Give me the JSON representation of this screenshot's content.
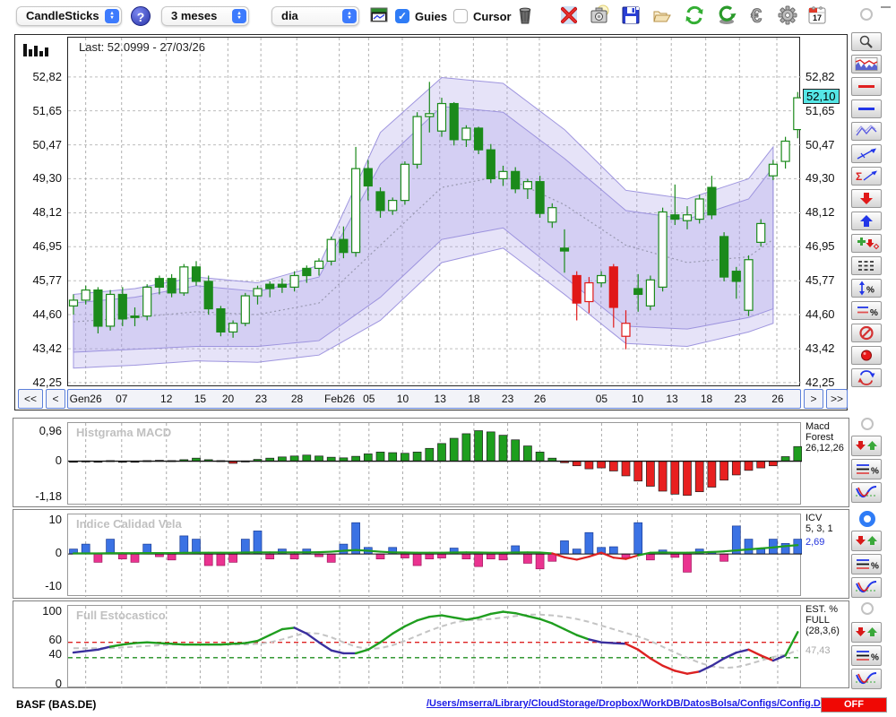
{
  "toolbar": {
    "chart_type": "CandleSticks",
    "period": "3 meses",
    "interval": "dia",
    "guies_label": "Guies",
    "cursor_label": "Cursor",
    "calendar_day": "17"
  },
  "icons": {
    "help": "?",
    "delete": "✗",
    "euro": "€"
  },
  "date_bar": {
    "first": "<<",
    "prev": "<",
    "next": ">",
    "last": ">>",
    "ticks": [
      {
        "l": "Gen26",
        "f": 0.024
      },
      {
        "l": "07",
        "f": 0.073
      },
      {
        "l": "12",
        "f": 0.134
      },
      {
        "l": "15",
        "f": 0.18
      },
      {
        "l": "20",
        "f": 0.218
      },
      {
        "l": "23",
        "f": 0.263
      },
      {
        "l": "28",
        "f": 0.312
      },
      {
        "l": "Feb26",
        "f": 0.37
      },
      {
        "l": "05",
        "f": 0.41
      },
      {
        "l": "10",
        "f": 0.456
      },
      {
        "l": "13",
        "f": 0.507
      },
      {
        "l": "18",
        "f": 0.553
      },
      {
        "l": "23",
        "f": 0.599
      },
      {
        "l": "26",
        "f": 0.643
      },
      {
        "l": "05",
        "f": 0.727
      },
      {
        "l": "10",
        "f": 0.776
      },
      {
        "l": "13",
        "f": 0.823
      },
      {
        "l": "18",
        "f": 0.87
      },
      {
        "l": "23",
        "f": 0.916
      },
      {
        "l": "26",
        "f": 0.967
      }
    ]
  },
  "colors": {
    "candle_up": "#1b8a1b",
    "candle_down": "#e01818",
    "band_fill": "rgba(165,155,230,0.28)",
    "band_edge": "rgba(150,140,220,0.9)",
    "mid_line": "#9898b0",
    "grid": "#bdbdbd",
    "macd_pos": "#1e9e1e",
    "macd_neg": "#e82020",
    "macd_small": "#111111",
    "icv_pos": "#3b72e4",
    "icv_neg": "#ea3390",
    "line_green": "#1f9e1f",
    "line_red": "#dd2222",
    "line_navy": "#3a2f9e",
    "stoch_d_gray": "#c4c4c4",
    "accent_blue": "#2f7cf6",
    "off_red": "#f00804",
    "price_tag_cyan": "#55e6e6"
  },
  "chart_data": [
    {
      "type": "candlestick",
      "name": "price",
      "last_label": "Last: 52.0999 - 27/03/26",
      "current_price": 52.1,
      "current_price_label": "52,10",
      "y_ticks": [
        52.82,
        51.65,
        50.47,
        49.3,
        48.12,
        46.95,
        45.77,
        44.6,
        43.42,
        42.25
      ],
      "y_tick_labels": [
        "52,82",
        "51,65",
        "50,47",
        "49,30",
        "48,12",
        "46,95",
        "45,77",
        "44,60",
        "43,42",
        "42,25"
      ],
      "price_domain": [
        54.18,
        42.09
      ],
      "candles": [
        [
          44.9,
          45.3,
          44.6,
          45.1,
          "h",
          "g"
        ],
        [
          45.1,
          45.6,
          44.95,
          45.45,
          "h",
          "g"
        ],
        [
          45.45,
          45.55,
          43.95,
          44.2,
          "s",
          "g"
        ],
        [
          44.2,
          45.45,
          44.05,
          45.3,
          "h",
          "g"
        ],
        [
          45.3,
          45.55,
          44.2,
          44.45,
          "s",
          "g"
        ],
        [
          44.5,
          44.85,
          44.2,
          44.55,
          "s",
          "g"
        ],
        [
          44.55,
          45.65,
          44.4,
          45.55,
          "h",
          "g"
        ],
        [
          45.55,
          45.95,
          45.3,
          45.85,
          "s",
          "g"
        ],
        [
          45.85,
          46.0,
          45.2,
          45.35,
          "s",
          "g"
        ],
        [
          45.35,
          46.35,
          45.25,
          46.25,
          "h",
          "g"
        ],
        [
          46.25,
          46.45,
          45.6,
          45.75,
          "s",
          "g"
        ],
        [
          45.75,
          45.95,
          44.6,
          44.8,
          "s",
          "g"
        ],
        [
          44.8,
          44.9,
          43.85,
          44.0,
          "s",
          "g"
        ],
        [
          44.0,
          44.4,
          43.8,
          44.3,
          "h",
          "g"
        ],
        [
          44.3,
          45.35,
          44.2,
          45.25,
          "h",
          "g"
        ],
        [
          45.25,
          45.6,
          44.95,
          45.5,
          "h",
          "g"
        ],
        [
          45.5,
          45.75,
          45.2,
          45.65,
          "s",
          "g"
        ],
        [
          45.65,
          45.85,
          45.35,
          45.55,
          "s",
          "g"
        ],
        [
          45.55,
          46.1,
          45.4,
          45.95,
          "h",
          "g"
        ],
        [
          45.95,
          46.3,
          45.7,
          46.2,
          "s",
          "g"
        ],
        [
          46.2,
          46.55,
          45.95,
          46.45,
          "h",
          "g"
        ],
        [
          46.45,
          47.3,
          46.3,
          47.2,
          "h",
          "g"
        ],
        [
          47.2,
          47.65,
          46.55,
          46.75,
          "s",
          "g"
        ],
        [
          46.75,
          50.4,
          46.6,
          49.65,
          "h",
          "g"
        ],
        [
          49.65,
          49.95,
          48.55,
          49.05,
          "s",
          "g"
        ],
        [
          48.85,
          49.0,
          47.95,
          48.2,
          "s",
          "g"
        ],
        [
          48.2,
          48.65,
          48.05,
          48.55,
          "h",
          "g"
        ],
        [
          48.55,
          49.9,
          48.4,
          49.8,
          "h",
          "g"
        ],
        [
          49.8,
          51.6,
          49.65,
          51.45,
          "h",
          "g"
        ],
        [
          51.45,
          52.65,
          50.9,
          51.55,
          "h",
          "g"
        ],
        [
          50.95,
          52.1,
          50.75,
          51.9,
          "h",
          "g"
        ],
        [
          51.9,
          51.95,
          50.45,
          50.65,
          "s",
          "g"
        ],
        [
          50.65,
          51.15,
          50.4,
          51.05,
          "h",
          "g"
        ],
        [
          51.05,
          51.1,
          50.15,
          50.3,
          "s",
          "g"
        ],
        [
          50.3,
          50.5,
          49.15,
          49.3,
          "s",
          "g"
        ],
        [
          49.3,
          49.75,
          49.05,
          49.55,
          "h",
          "g"
        ],
        [
          49.55,
          49.7,
          48.8,
          48.95,
          "s",
          "g"
        ],
        [
          48.95,
          49.3,
          48.6,
          49.2,
          "h",
          "g"
        ],
        [
          49.2,
          49.4,
          47.95,
          48.1,
          "s",
          "g"
        ],
        [
          47.8,
          48.45,
          47.6,
          48.3,
          "h",
          "g"
        ],
        [
          46.9,
          47.55,
          46.05,
          46.8,
          "s",
          "g"
        ],
        [
          45.95,
          46.1,
          44.4,
          45.0,
          "s",
          "r"
        ],
        [
          45.05,
          45.9,
          44.65,
          45.7,
          "h",
          "r"
        ],
        [
          45.7,
          46.1,
          45.55,
          45.95,
          "h",
          "g"
        ],
        [
          46.25,
          46.35,
          44.15,
          44.85,
          "s",
          "r"
        ],
        [
          43.85,
          44.75,
          43.4,
          44.3,
          "h",
          "r"
        ],
        [
          45.3,
          46.0,
          44.7,
          45.5,
          "s",
          "g"
        ],
        [
          44.9,
          45.95,
          44.75,
          45.8,
          "h",
          "g"
        ],
        [
          45.55,
          48.3,
          45.4,
          48.15,
          "h",
          "g"
        ],
        [
          47.9,
          49.1,
          47.7,
          48.05,
          "s",
          "g"
        ],
        [
          47.85,
          48.35,
          47.55,
          48.05,
          "h",
          "g"
        ],
        [
          47.9,
          48.75,
          47.75,
          48.6,
          "h",
          "g"
        ],
        [
          48.05,
          49.4,
          47.9,
          49.0,
          "s",
          "g"
        ],
        [
          47.3,
          47.45,
          45.75,
          45.9,
          "s",
          "g"
        ],
        [
          45.75,
          46.25,
          45.15,
          46.1,
          "s",
          "g"
        ],
        [
          44.75,
          46.65,
          44.55,
          46.5,
          "h",
          "g"
        ],
        [
          47.1,
          47.9,
          46.95,
          47.75,
          "h",
          "g"
        ],
        [
          49.4,
          49.95,
          49.25,
          49.8,
          "h",
          "g"
        ],
        [
          49.9,
          50.75,
          49.65,
          50.6,
          "h",
          "g"
        ],
        [
          51.0,
          52.3,
          50.7,
          52.1,
          "h",
          "g"
        ]
      ],
      "bands": {
        "ctrl_idx": [
          0,
          5,
          10,
          15,
          20,
          25,
          30,
          35,
          40,
          45,
          50,
          55,
          57
        ],
        "outer_upper": [
          45.3,
          45.5,
          45.9,
          45.7,
          46.3,
          50.9,
          52.8,
          52.6,
          51.0,
          48.9,
          48.6,
          49.3,
          50.4
        ],
        "outer_lower": [
          42.75,
          42.85,
          43.0,
          42.95,
          43.2,
          44.4,
          46.4,
          46.9,
          45.3,
          43.6,
          43.5,
          44.0,
          44.3
        ],
        "inner_upper": [
          45.0,
          45.2,
          45.6,
          45.4,
          45.9,
          49.8,
          51.8,
          51.6,
          50.0,
          48.2,
          47.9,
          48.6,
          49.7
        ],
        "inner_lower": [
          43.3,
          43.4,
          43.5,
          43.5,
          43.7,
          45.2,
          47.2,
          47.6,
          45.9,
          44.2,
          44.1,
          44.5,
          44.8
        ],
        "mid": [
          44.35,
          44.5,
          44.7,
          44.6,
          45.0,
          47.0,
          49.0,
          49.4,
          48.4,
          47.0,
          46.4,
          46.6,
          47.2
        ],
        "end_idx": 57
      }
    },
    {
      "type": "bar",
      "name": "macd_histogram",
      "title": "Histgrama MACD",
      "y_labels": [
        "0,96",
        "0",
        "-1,18"
      ],
      "y_label_values": [
        0.96,
        0,
        -1.18
      ],
      "domain": [
        1.25,
        -1.45
      ],
      "values": [
        -0.02,
        0.01,
        -0.03,
        0.02,
        -0.02,
        -0.01,
        0.02,
        0.03,
        0.02,
        0.05,
        0.1,
        0.05,
        0.02,
        -0.07,
        0.01,
        0.06,
        0.1,
        0.14,
        0.17,
        0.2,
        0.17,
        0.13,
        0.11,
        0.16,
        0.24,
        0.3,
        0.28,
        0.26,
        0.3,
        0.42,
        0.58,
        0.75,
        0.9,
        1.0,
        0.96,
        0.85,
        0.7,
        0.5,
        0.3,
        0.1,
        -0.05,
        -0.15,
        -0.25,
        -0.22,
        -0.32,
        -0.48,
        -0.65,
        -0.82,
        -0.98,
        -1.08,
        -1.12,
        -1.0,
        -0.85,
        -0.62,
        -0.45,
        -0.3,
        -0.22,
        -0.15,
        0.15,
        0.48
      ],
      "right_label": [
        "Macd",
        "Forest",
        "26,12,26"
      ]
    },
    {
      "type": "bar+line",
      "name": "icv",
      "title": "Indice Calidad Vela",
      "y_labels": [
        "10",
        "0",
        "-10"
      ],
      "y_label_values": [
        10,
        0,
        -10
      ],
      "domain": [
        12,
        -13
      ],
      "bars": [
        1.5,
        3.0,
        -2.5,
        4.5,
        -1.5,
        -2.5,
        3.0,
        -0.8,
        -1.8,
        5.5,
        4.5,
        -3.5,
        -3.5,
        -2.5,
        4.5,
        7.0,
        -1.5,
        1.5,
        -1.5,
        1.5,
        -0.8,
        -2.5,
        3.0,
        9.5,
        2.0,
        -1.5,
        2.0,
        -1.2,
        -3.5,
        -1.5,
        -1.2,
        1.8,
        -1.5,
        -3.8,
        -1.5,
        -1.8,
        2.5,
        -2.8,
        -4.5,
        -2.2,
        4.0,
        1.5,
        6.5,
        2.0,
        2.2,
        -1.2,
        9.5,
        -1.8,
        1.2,
        -1.0,
        -5.5,
        1.5,
        0.8,
        -2.2,
        8.5,
        4.5,
        1.5,
        4.5,
        3.2,
        4.5
      ],
      "line": [
        0.2,
        0.2,
        0.2,
        0.25,
        0.25,
        0.25,
        0.3,
        0.3,
        0.3,
        0.35,
        0.4,
        0.4,
        0.4,
        0.4,
        0.45,
        0.5,
        0.5,
        0.5,
        0.5,
        0.5,
        0.55,
        0.7,
        1.0,
        1.2,
        1.0,
        0.7,
        0.5,
        0.45,
        0.4,
        0.4,
        0.4,
        0.45,
        0.5,
        0.45,
        0.4,
        0.4,
        0.45,
        0.5,
        0.45,
        0.2,
        -1.0,
        -1.7,
        -0.8,
        0.4,
        -1.1,
        -1.5,
        -0.4,
        0.4,
        0.45,
        0.4,
        0.4,
        0.5,
        0.6,
        0.8,
        1.1,
        1.4,
        1.7,
        2.0,
        2.4,
        2.7
      ],
      "right_label": [
        "ICV",
        "5, 3, 1"
      ],
      "value_label": "2,69"
    },
    {
      "type": "line",
      "name": "full_stochastic",
      "title": "Full Estocastico",
      "y_labels": [
        "100",
        "60",
        "40",
        "0"
      ],
      "y_label_values": [
        100,
        60,
        40,
        0
      ],
      "domain": [
        108,
        -5
      ],
      "upper_threshold": 58,
      "lower_threshold": 37,
      "k": [
        44,
        46,
        48,
        52,
        55,
        57,
        58,
        57,
        56,
        55,
        55,
        55,
        55,
        56,
        57,
        60,
        68,
        76,
        78,
        70,
        58,
        47,
        43,
        43,
        48,
        58,
        70,
        80,
        88,
        93,
        95,
        92,
        89,
        92,
        97,
        100,
        98,
        94,
        90,
        84,
        76,
        68,
        62,
        58,
        57,
        56,
        48,
        36,
        26,
        19,
        15,
        18,
        26,
        36,
        44,
        48,
        40,
        33,
        40,
        72
      ],
      "k_colors": [
        "n",
        "n",
        "n",
        "n",
        "g",
        "g",
        "g",
        "g",
        "g",
        "g",
        "g",
        "g",
        "g",
        "g",
        "g",
        "g",
        "g",
        "g",
        "g",
        "n",
        "n",
        "n",
        "n",
        "n",
        "g",
        "g",
        "g",
        "g",
        "g",
        "g",
        "g",
        "g",
        "g",
        "g",
        "g",
        "g",
        "g",
        "g",
        "g",
        "g",
        "g",
        "g",
        "g",
        "n",
        "n",
        "n",
        "r",
        "r",
        "r",
        "r",
        "r",
        "r",
        "n",
        "n",
        "n",
        "n",
        "r",
        "r",
        "n",
        "g"
      ],
      "d": [
        50,
        50,
        50,
        50,
        51,
        52,
        53,
        54,
        55,
        55,
        55,
        55,
        55,
        55,
        55,
        56,
        58,
        62,
        67,
        71,
        70,
        65,
        58,
        52,
        49,
        50,
        54,
        60,
        67,
        74,
        80,
        85,
        88,
        89,
        90,
        92,
        94,
        96,
        96,
        95,
        93,
        90,
        86,
        81,
        76,
        71,
        66,
        60,
        52,
        44,
        37,
        30,
        25,
        23,
        24,
        28,
        33,
        38,
        41,
        47
      ],
      "right_label": [
        "EST. %",
        "FULL",
        "(28,3,6)"
      ],
      "value_label": "47,43"
    }
  ],
  "status_bar": {
    "symbol": "BASF (BAS.DE)",
    "config_path": "/Users/mserra/Library/CloudStorage/Dropbox/WorkDB/DatosBolsa/Configs/Config.DEFAULT.xml",
    "off_label": "OFF"
  }
}
